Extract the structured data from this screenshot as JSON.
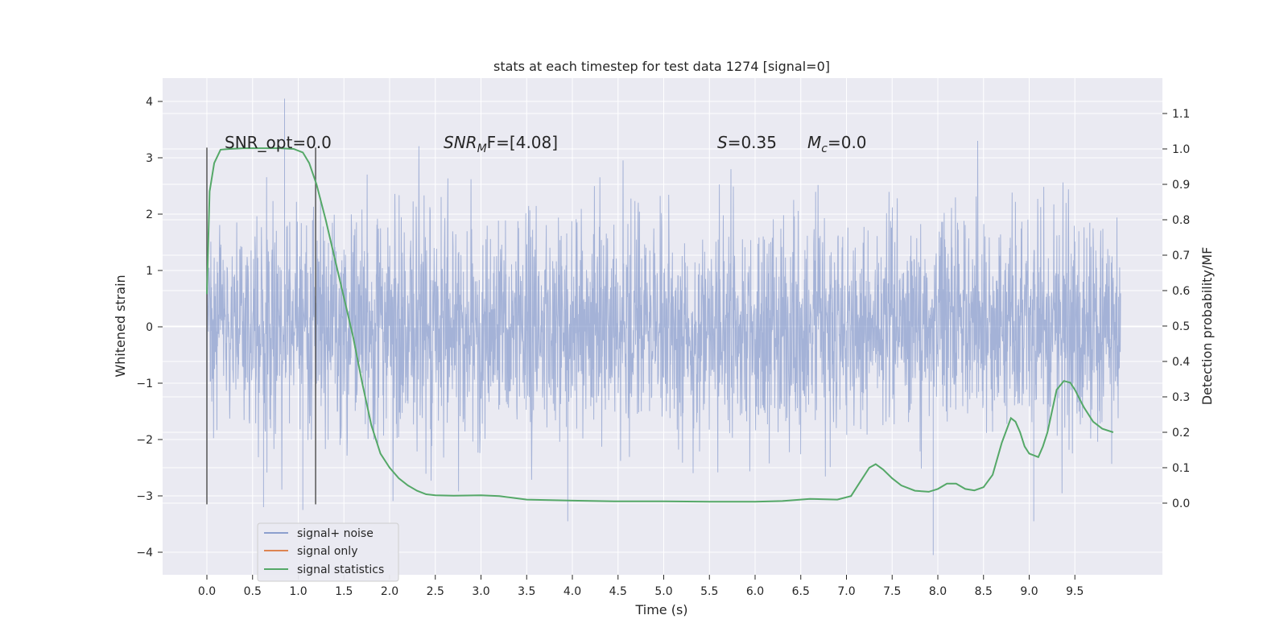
{
  "chart_data": {
    "type": "line",
    "title": "stats at each timestep for test data 1274 [signal=0]",
    "xlabel": "Time (s)",
    "ylabel_left": "Whitened strain",
    "ylabel_right": "Detection probability/MF",
    "x_ticks": [
      "0.0",
      "0.5",
      "1.0",
      "1.5",
      "2.0",
      "2.5",
      "3.0",
      "3.5",
      "4.0",
      "4.5",
      "5.0",
      "5.5",
      "6.0",
      "6.5",
      "7.0",
      "7.5",
      "8.0",
      "8.5",
      "9.0",
      "9.5"
    ],
    "y_left_ticks": [
      "4",
      "3",
      "2",
      "1",
      "0",
      "−1",
      "−2",
      "−3",
      "−4"
    ],
    "y_right_ticks": [
      "1.1",
      "1.0",
      "0.9",
      "0.8",
      "0.7",
      "0.6",
      "0.5",
      "0.4",
      "0.3",
      "0.2",
      "0.1",
      "0.0"
    ],
    "xlim": [
      -0.5,
      10.5
    ],
    "ylim_left": [
      -4.4,
      4.4
    ],
    "ylim_right": [
      -0.2,
      1.2
    ],
    "grid": true,
    "legend_placement": "lower-left",
    "vlines": [
      0.0,
      1.19
    ],
    "annotations": {
      "snr_opt": "SNR_opt=0.0",
      "snr_mf_prefix": "SNR",
      "snr_mf_sub": "M",
      "snr_mf_suffix": "F=[4.08]",
      "s_sym": "S",
      "s_val": "=0.35",
      "mc_sym": "M",
      "mc_sub": "c",
      "mc_val": "=0.0"
    },
    "series": [
      {
        "name": "signal+ noise",
        "color": "#8c9fce",
        "axis": "left",
        "x_range": [
          0.0,
          10.0
        ],
        "envelope_note_values": [
          1.3,
          -1.3
        ],
        "peaks": [
          [
            0.85,
            4.05
          ],
          [
            3.95,
            -3.45
          ],
          [
            7.95,
            -4.05
          ],
          [
            1.05,
            -3.25
          ],
          [
            9.05,
            -3.45
          ],
          [
            0.62,
            -3.2
          ]
        ]
      },
      {
        "name": "signal only",
        "color": "#dd8452",
        "axis": "left",
        "x": [],
        "y": []
      },
      {
        "name": "signal statistics",
        "color": "#55a868",
        "axis": "right",
        "x": [
          0.0,
          0.03,
          0.08,
          0.15,
          0.25,
          0.4,
          0.6,
          0.8,
          0.95,
          1.05,
          1.12,
          1.2,
          1.3,
          1.4,
          1.5,
          1.6,
          1.7,
          1.8,
          1.9,
          2.0,
          2.1,
          2.2,
          2.3,
          2.4,
          2.5,
          2.7,
          3.0,
          3.2,
          3.5,
          4.0,
          4.5,
          5.0,
          5.5,
          6.0,
          6.3,
          6.6,
          6.9,
          7.05,
          7.15,
          7.25,
          7.32,
          7.4,
          7.5,
          7.6,
          7.75,
          7.9,
          8.0,
          8.1,
          8.2,
          8.3,
          8.4,
          8.5,
          8.6,
          8.7,
          8.8,
          8.85,
          8.9,
          8.95,
          9.0,
          9.1,
          9.15,
          9.2,
          9.3,
          9.38,
          9.45,
          9.5,
          9.6,
          9.7,
          9.8,
          9.92
        ],
        "y": [
          0.59,
          0.88,
          0.96,
          0.998,
          1.0,
          1.002,
          1.002,
          1.002,
          1.0,
          0.99,
          0.96,
          0.9,
          0.8,
          0.69,
          0.58,
          0.47,
          0.34,
          0.22,
          0.14,
          0.1,
          0.07,
          0.05,
          0.035,
          0.025,
          0.022,
          0.021,
          0.022,
          0.02,
          0.01,
          0.007,
          0.005,
          0.005,
          0.004,
          0.004,
          0.006,
          0.012,
          0.01,
          0.02,
          0.06,
          0.1,
          0.11,
          0.095,
          0.07,
          0.05,
          0.035,
          0.032,
          0.04,
          0.055,
          0.055,
          0.04,
          0.036,
          0.045,
          0.08,
          0.17,
          0.24,
          0.23,
          0.2,
          0.16,
          0.14,
          0.13,
          0.16,
          0.2,
          0.32,
          0.345,
          0.34,
          0.32,
          0.27,
          0.23,
          0.21,
          0.2
        ]
      }
    ]
  }
}
